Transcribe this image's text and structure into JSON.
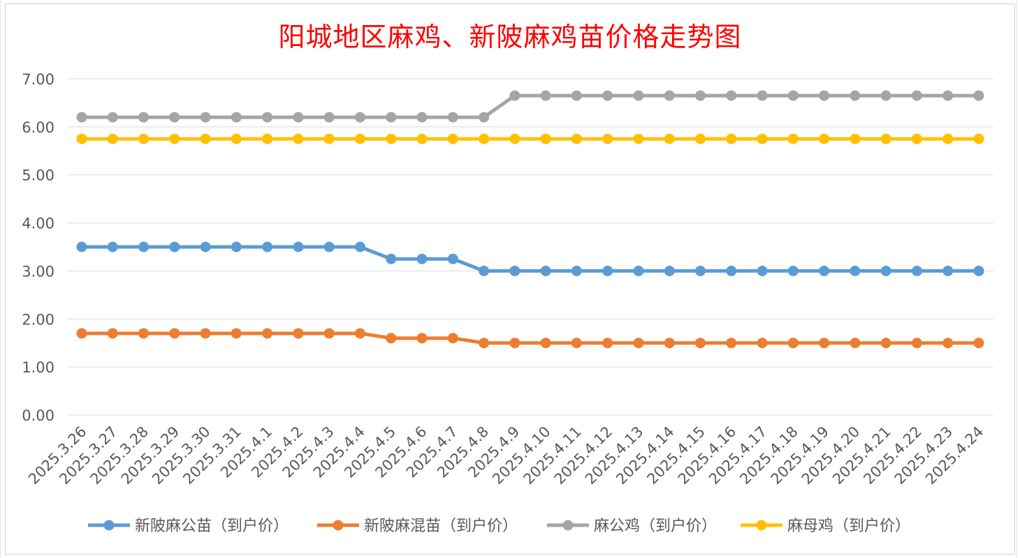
{
  "chart_data": {
    "type": "line",
    "title": "阳城地区麻鸡、新陂麻鸡苗价格走势图",
    "categories": [
      "2025.3.26",
      "2025.3.27",
      "2025.3.28",
      "2025.3.29",
      "2025.3.30",
      "2025.3.31",
      "2025.4.1",
      "2025.4.2",
      "2025.4.3",
      "2025.4.4",
      "2025.4.5",
      "2025.4.6",
      "2025.4.7",
      "2025.4.8",
      "2025.4.9",
      "2025.4.10",
      "2025.4.11",
      "2025.4.12",
      "2025.4.13",
      "2025.4.14",
      "2025.4.15",
      "2025.4.16",
      "2025.4.17",
      "2025.4.18",
      "2025.4.19",
      "2025.4.20",
      "2025.4.21",
      "2025.4.22",
      "2025.4.23",
      "2025.4.24"
    ],
    "ylim": [
      0,
      7
    ],
    "yticks": [
      "0.00",
      "1.00",
      "2.00",
      "3.00",
      "4.00",
      "5.00",
      "6.00",
      "7.00"
    ],
    "grid": true,
    "legend_position": "bottom",
    "series": [
      {
        "name": "新陂麻公苗（到户价）",
        "color": "#5b9bd5",
        "values": [
          3.5,
          3.5,
          3.5,
          3.5,
          3.5,
          3.5,
          3.5,
          3.5,
          3.5,
          3.5,
          3.25,
          3.25,
          3.25,
          3.0,
          3.0,
          3.0,
          3.0,
          3.0,
          3.0,
          3.0,
          3.0,
          3.0,
          3.0,
          3.0,
          3.0,
          3.0,
          3.0,
          3.0,
          3.0,
          3.0
        ]
      },
      {
        "name": "新陂麻混苗（到户价）",
        "color": "#ed7d31",
        "values": [
          1.7,
          1.7,
          1.7,
          1.7,
          1.7,
          1.7,
          1.7,
          1.7,
          1.7,
          1.7,
          1.6,
          1.6,
          1.6,
          1.5,
          1.5,
          1.5,
          1.5,
          1.5,
          1.5,
          1.5,
          1.5,
          1.5,
          1.5,
          1.5,
          1.5,
          1.5,
          1.5,
          1.5,
          1.5,
          1.5
        ]
      },
      {
        "name": "麻公鸡（到户价）",
        "color": "#a5a5a5",
        "values": [
          6.2,
          6.2,
          6.2,
          6.2,
          6.2,
          6.2,
          6.2,
          6.2,
          6.2,
          6.2,
          6.2,
          6.2,
          6.2,
          6.2,
          6.65,
          6.65,
          6.65,
          6.65,
          6.65,
          6.65,
          6.65,
          6.65,
          6.65,
          6.65,
          6.65,
          6.65,
          6.65,
          6.65,
          6.65,
          6.65
        ]
      },
      {
        "name": "麻母鸡（到户价）",
        "color": "#ffc000",
        "values": [
          5.75,
          5.75,
          5.75,
          5.75,
          5.75,
          5.75,
          5.75,
          5.75,
          5.75,
          5.75,
          5.75,
          5.75,
          5.75,
          5.75,
          5.75,
          5.75,
          5.75,
          5.75,
          5.75,
          5.75,
          5.75,
          5.75,
          5.75,
          5.75,
          5.75,
          5.75,
          5.75,
          5.75,
          5.75,
          5.75
        ]
      }
    ]
  }
}
